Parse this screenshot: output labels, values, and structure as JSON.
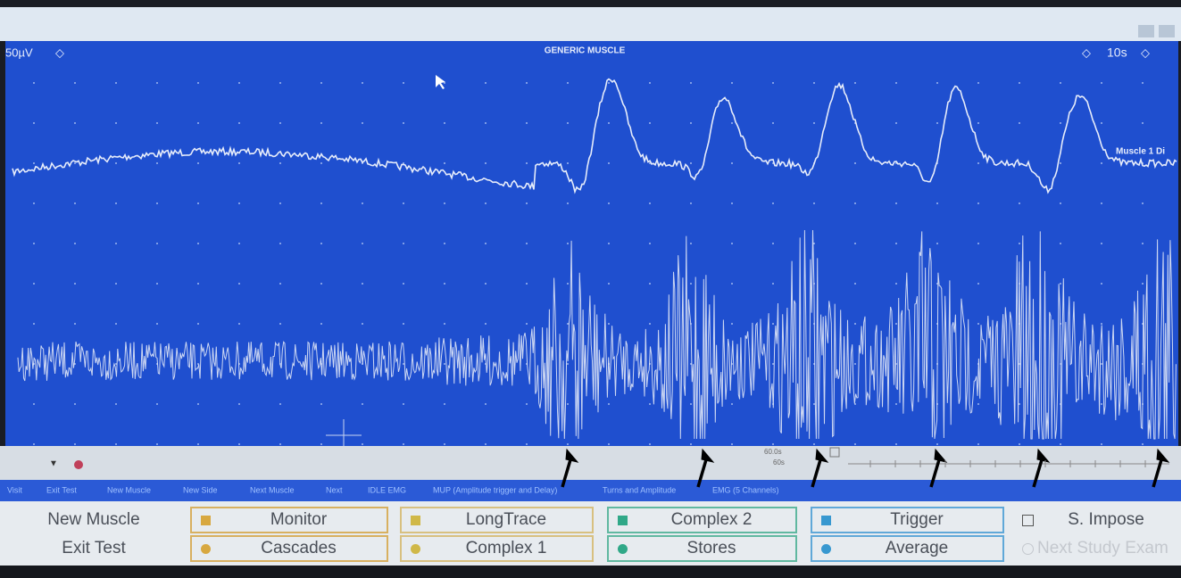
{
  "header": {
    "scale": "50µV",
    "title": "GENERIC MUSCLE",
    "timebase": "10s",
    "trace_label": "Muscle 1 Di"
  },
  "status": {
    "sweep": "60.0s",
    "sweep_select": "60s"
  },
  "menu": [
    "Visit",
    "Exit Test",
    "New Muscle",
    "New Side",
    "Next Muscle",
    "Next",
    "IDLE EMG",
    "MUP (Amplitude trigger and Delay)",
    "Turns and Amplitude",
    "EMG (5 Channels)"
  ],
  "buttons": [
    [
      "New Muscle",
      "Exit Test"
    ],
    [
      "Monitor",
      "Cascades"
    ],
    [
      "LongTrace",
      "Complex 1"
    ],
    [
      "Complex 2",
      "Stores"
    ],
    [
      "Trigger",
      "Average"
    ],
    [
      "S. Impose",
      "Next Study Exam"
    ]
  ]
}
